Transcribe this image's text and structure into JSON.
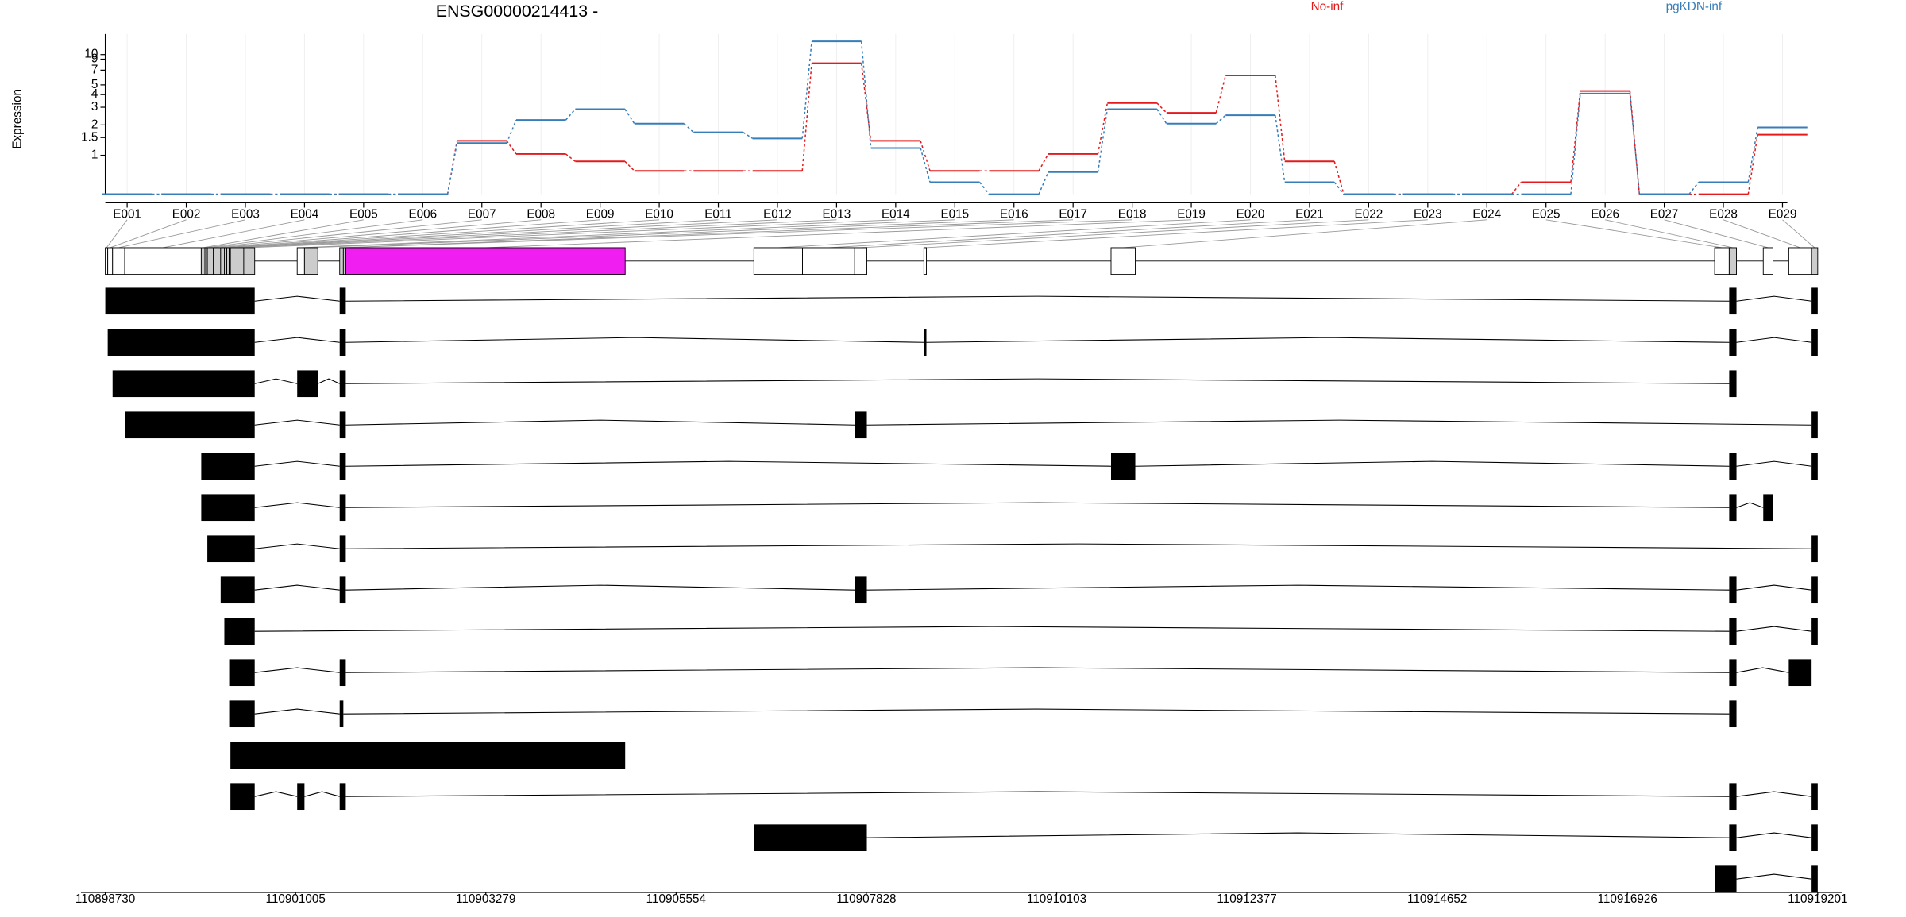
{
  "chart_data": [
    {
      "type": "line",
      "title": "ENSG00000214413 -",
      "ylabel": "Expression",
      "log_scale": true,
      "grid": true,
      "categories": [
        "E001",
        "E002",
        "E003",
        "E004",
        "E005",
        "E006",
        "E007",
        "E008",
        "E009",
        "E010",
        "E011",
        "E012",
        "E013",
        "E014",
        "E015",
        "E016",
        "E017",
        "E018",
        "E019",
        "E020",
        "E021",
        "E022",
        "E023",
        "E024",
        "E025",
        "E026",
        "E027",
        "E028",
        "E029"
      ],
      "series": [
        {
          "name": "No-inf",
          "color": "#e41a1c",
          "values": [
            0.41,
            0.41,
            0.41,
            0.41,
            0.41,
            0.41,
            1.39,
            1.03,
            0.87,
            0.7,
            0.7,
            0.7,
            8.2,
            1.39,
            0.7,
            0.7,
            1.03,
            3.3,
            2.64,
            6.2,
            0.87,
            0.41,
            0.41,
            0.41,
            0.54,
            4.35,
            0.41,
            0.41,
            1.6
          ]
        },
        {
          "name": "pgKDN-inf",
          "color": "#377eb8",
          "values": [
            0.41,
            0.41,
            0.41,
            0.41,
            0.41,
            0.41,
            1.32,
            2.24,
            2.87,
            2.06,
            1.69,
            1.47,
            13.5,
            1.18,
            0.54,
            0.41,
            0.68,
            2.87,
            2.06,
            2.5,
            0.54,
            0.41,
            0.41,
            0.41,
            0.41,
            4.1,
            0.41,
            0.54,
            1.89
          ]
        }
      ],
      "ylim": [
        0.41,
        16
      ],
      "yticks": [
        1,
        1.5,
        2,
        3,
        4,
        5,
        7,
        9,
        10
      ]
    },
    {
      "type": "gene_model",
      "bins": [
        [
          110898730,
          110898759
        ],
        [
          110898759,
          110898817
        ],
        [
          110898817,
          110898962
        ],
        [
          110898962,
          110899877
        ],
        [
          110899877,
          110899921
        ],
        [
          110899921,
          110899950
        ],
        [
          110899950,
          110900022
        ],
        [
          110900022,
          110900109
        ],
        [
          110900109,
          110900153
        ],
        [
          110900153,
          110900182
        ],
        [
          110900182,
          110900211
        ],
        [
          110900211,
          110900226
        ],
        [
          110900226,
          110900385
        ],
        [
          110900385,
          110900516
        ],
        [
          110901024,
          110901111
        ],
        [
          110901111,
          110901271
        ],
        [
          110901532,
          110901576
        ],
        [
          110901576,
          110901605
        ],
        [
          110901605,
          110904945
        ],
        [
          110906484,
          110907065
        ],
        [
          110907065,
          110907689
        ],
        [
          110907689,
          110907834
        ],
        [
          110908516,
          110908546
        ],
        [
          110910753,
          110911043
        ],
        [
          110917969,
          110918143
        ],
        [
          110918143,
          110918230
        ],
        [
          110918550,
          110918666
        ],
        [
          110918855,
          110919128
        ],
        [
          110919128,
          110919201
        ]
      ],
      "bin_fills": [
        "#ffffff",
        "#ffffff",
        "#ffffff",
        "#ffffff",
        "#cccccc",
        "#cccccc",
        "#cccccc",
        "#cccccc",
        "#cccccc",
        "#cccccc",
        "#cccccc",
        "#cccccc",
        "#cccccc",
        "#cccccc",
        "#ffffff",
        "#cccccc",
        "#cccccc",
        "#cccccc",
        "#f01ef0",
        "#ffffff",
        "#ffffff",
        "#ffffff",
        "#ffffff",
        "#ffffff",
        "#ffffff",
        "#cccccc",
        "#ffffff",
        "#ffffff",
        "#cccccc"
      ],
      "transcripts": [
        {
          "exons": [
            [
              110898730,
              110900516
            ],
            [
              110901532,
              110901605
            ],
            [
              110918143,
              110918230
            ],
            [
              110919128,
              110919201
            ]
          ]
        },
        {
          "exons": [
            [
              110898759,
              110900516
            ],
            [
              110901532,
              110901605
            ],
            [
              110908516,
              110908546
            ],
            [
              110918143,
              110918230
            ],
            [
              110919128,
              110919201
            ]
          ]
        },
        {
          "exons": [
            [
              110898817,
              110900516
            ],
            [
              110901024,
              110901271
            ],
            [
              110901532,
              110901605
            ],
            [
              110918143,
              110918230
            ]
          ]
        },
        {
          "exons": [
            [
              110898962,
              110900516
            ],
            [
              110901532,
              110901605
            ],
            [
              110907689,
              110907834
            ],
            [
              110919128,
              110919201
            ]
          ]
        },
        {
          "exons": [
            [
              110899877,
              110900516
            ],
            [
              110901532,
              110901605
            ],
            [
              110910753,
              110911043
            ],
            [
              110918143,
              110918230
            ],
            [
              110919128,
              110919201
            ]
          ]
        },
        {
          "exons": [
            [
              110899877,
              110900516
            ],
            [
              110901532,
              110901605
            ],
            [
              110918143,
              110918230
            ],
            [
              110918550,
              110918666
            ]
          ]
        },
        {
          "exons": [
            [
              110899950,
              110900516
            ],
            [
              110901532,
              110901605
            ],
            [
              110919128,
              110919201
            ]
          ]
        },
        {
          "exons": [
            [
              110900109,
              110900516
            ],
            [
              110901532,
              110901605
            ],
            [
              110907689,
              110907834
            ],
            [
              110918143,
              110918230
            ],
            [
              110919128,
              110919201
            ]
          ]
        },
        {
          "exons": [
            [
              110900153,
              110900516
            ],
            [
              110918143,
              110918230
            ],
            [
              110919128,
              110919201
            ]
          ]
        },
        {
          "exons": [
            [
              110900211,
              110900516
            ],
            [
              110901532,
              110901605
            ],
            [
              110918143,
              110918230
            ],
            [
              110918855,
              110919128
            ]
          ]
        },
        {
          "exons": [
            [
              110900211,
              110900516
            ],
            [
              110901532,
              110901576
            ],
            [
              110918143,
              110918230
            ]
          ]
        },
        {
          "exons": [
            [
              110900226,
              110904945
            ]
          ]
        },
        {
          "exons": [
            [
              110900226,
              110900516
            ],
            [
              110901024,
              110901111
            ],
            [
              110901532,
              110901605
            ],
            [
              110918143,
              110918230
            ],
            [
              110919128,
              110919201
            ]
          ]
        },
        {
          "exons": [
            [
              110906484,
              110907834
            ],
            [
              110918143,
              110918230
            ],
            [
              110919128,
              110919201
            ]
          ]
        },
        {
          "exons": [
            [
              110917969,
              110918230
            ],
            [
              110919128,
              110919201
            ]
          ]
        }
      ],
      "xlim": [
        110898730,
        110919201
      ],
      "xticks": [
        110898730,
        110901005,
        110903279,
        110905554,
        110907828,
        110910103,
        110912377,
        110914652,
        110916926,
        110919201
      ]
    }
  ]
}
